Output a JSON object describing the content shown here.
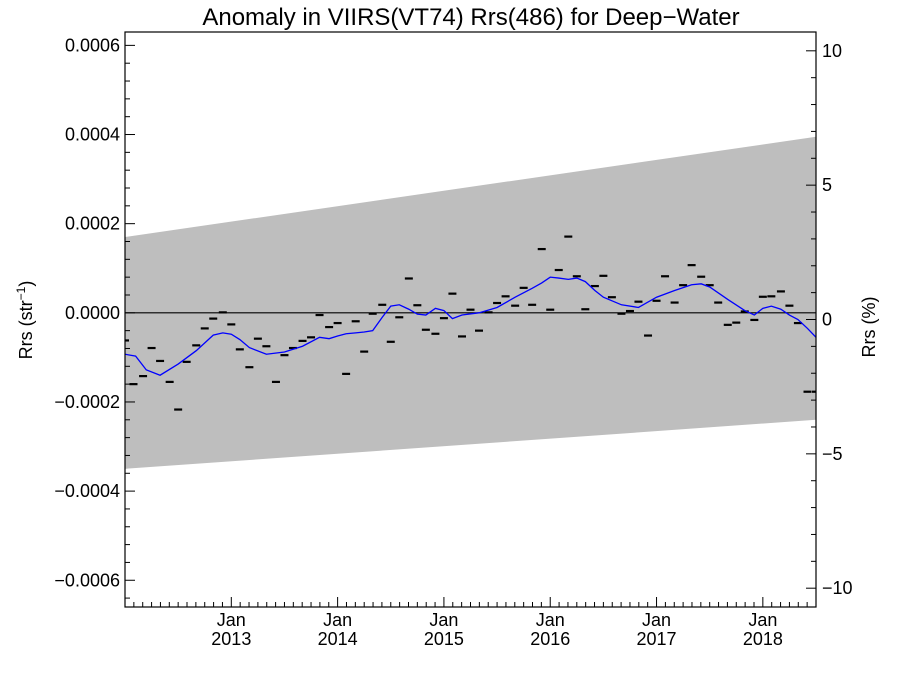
{
  "chart_data": {
    "type": "scatter",
    "title": "Anomaly in VIIRS(VT74) Rrs(486) for Deep−Water",
    "ylabel_left": "Rrs (str",
    "ylabel_left_sup": "−1",
    "ylabel_left_close": ")",
    "ylabel_right": "Rrs (%)",
    "x_tick_months": [
      "Jan",
      "Jan",
      "Jan",
      "Jan",
      "Jan",
      "Jan"
    ],
    "x_tick_years": [
      "2013",
      "2014",
      "2015",
      "2016",
      "2017",
      "2018"
    ],
    "x_ticks": [
      2013.0,
      2014.0,
      2015.0,
      2016.0,
      2017.0,
      2018.0
    ],
    "xlim": [
      2012.0,
      2018.5
    ],
    "ylim": [
      -0.00066,
      0.00063
    ],
    "y_ticks": [
      -0.0006,
      -0.0004,
      -0.0002,
      0.0,
      0.0002,
      0.0004,
      0.0006
    ],
    "y_tick_labels": [
      "−0.0006",
      "−0.0004",
      "−0.0002",
      "0.0000",
      "0.0002",
      "0.0004",
      "0.0006"
    ],
    "y2lim": [
      -10.7,
      10.7
    ],
    "y2_ticks": [
      -10,
      -5,
      0,
      5,
      10
    ],
    "y2_tick_labels": [
      "−10",
      "−5",
      "0",
      "5",
      "10"
    ],
    "reference_line": 0.0,
    "band": {
      "x": [
        2012.0,
        2018.5
      ],
      "upper": [
        0.00017,
        0.000395
      ],
      "lower": [
        -0.00035,
        -0.00024
      ],
      "color": "#bebebe"
    },
    "series": [
      {
        "style": "markers",
        "color": "#000000",
        "x": [
          2012.0,
          2012.08,
          2012.17,
          2012.25,
          2012.33,
          2012.42,
          2012.5,
          2012.58,
          2012.67,
          2012.75,
          2012.83,
          2012.92,
          2013.0,
          2013.08,
          2013.17,
          2013.25,
          2013.33,
          2013.42,
          2013.5,
          2013.58,
          2013.67,
          2013.75,
          2013.83,
          2013.92,
          2014.0,
          2014.08,
          2014.17,
          2014.25,
          2014.33,
          2014.42,
          2014.5,
          2014.58,
          2014.67,
          2014.75,
          2014.83,
          2014.92,
          2015.0,
          2015.08,
          2015.17,
          2015.25,
          2015.33,
          2015.42,
          2015.5,
          2015.58,
          2015.67,
          2015.75,
          2015.83,
          2015.92,
          2016.0,
          2016.08,
          2016.17,
          2016.25,
          2016.33,
          2016.42,
          2016.5,
          2016.58,
          2016.67,
          2016.75,
          2016.83,
          2016.92,
          2017.0,
          2017.08,
          2017.17,
          2017.25,
          2017.33,
          2017.42,
          2017.5,
          2017.58,
          2017.67,
          2017.75,
          2017.83,
          2017.92,
          2018.0,
          2018.08,
          2018.17,
          2018.25,
          2018.33,
          2018.42,
          2018.5
        ],
        "y": [
          -6.2e-05,
          -0.00016,
          -0.000142,
          -7.9e-05,
          -0.000108,
          -0.000155,
          -0.000217,
          -0.00011,
          -7.3e-05,
          -3.5e-05,
          -1.3e-05,
          1e-06,
          -2.6e-05,
          -8.2e-05,
          -0.000122,
          -5.8e-05,
          -7.5e-05,
          -0.000155,
          -9.5e-05,
          -7.9e-05,
          -6.3e-05,
          -5.5e-05,
          -5e-06,
          -3.2e-05,
          -2.3e-05,
          -0.000137,
          -1.9e-05,
          -8.7e-05,
          -2e-06,
          1.8e-05,
          -6.5e-05,
          -1e-05,
          7.7e-05,
          1.7e-05,
          -3.8e-05,
          -4.7e-05,
          -1.2e-05,
          4.3e-05,
          -5.3e-05,
          7e-06,
          -4e-05,
          1e-06,
          2.2e-05,
          3.7e-05,
          1.6e-05,
          5.6e-05,
          1.8e-05,
          0.000143,
          7e-06,
          9.6e-05,
          0.000171,
          8.2e-05,
          8e-06,
          6e-05,
          8.3e-05,
          3.5e-05,
          -2e-06,
          4e-06,
          2.5e-05,
          -5.1e-05,
          2.7e-05,
          8.2e-05,
          2.3e-05,
          6.2e-05,
          0.000107,
          8.1e-05,
          6.2e-05,
          2.3e-05,
          -2.7e-05,
          -2.2e-05,
          3e-06,
          -1.6e-05,
          3.6e-05,
          3.7e-05,
          4.8e-05,
          1.6e-05,
          -2.3e-05,
          -0.000177,
          -0.000177
        ]
      },
      {
        "style": "line",
        "color": "#0000ff",
        "x": [
          2012.0,
          2012.1,
          2012.2,
          2012.33,
          2012.5,
          2012.67,
          2012.83,
          2012.92,
          2013.0,
          2013.08,
          2013.17,
          2013.33,
          2013.5,
          2013.67,
          2013.83,
          2013.92,
          2014.0,
          2014.08,
          2014.17,
          2014.25,
          2014.33,
          2014.42,
          2014.5,
          2014.58,
          2014.67,
          2014.75,
          2014.83,
          2014.92,
          2015.0,
          2015.08,
          2015.17,
          2015.33,
          2015.5,
          2015.67,
          2015.83,
          2015.92,
          2016.0,
          2016.08,
          2016.17,
          2016.25,
          2016.33,
          2016.42,
          2016.5,
          2016.67,
          2016.83,
          2017.0,
          2017.17,
          2017.33,
          2017.42,
          2017.5,
          2017.67,
          2017.83,
          2017.92,
          2018.0,
          2018.08,
          2018.17,
          2018.25,
          2018.33,
          2018.42,
          2018.5
        ],
        "y": [
          -9.3e-05,
          -9.7e-05,
          -0.000128,
          -0.00014,
          -0.000115,
          -8.5e-05,
          -5e-05,
          -4.5e-05,
          -4.8e-05,
          -6e-05,
          -7.8e-05,
          -9.3e-05,
          -8.8e-05,
          -7.5e-05,
          -5.5e-05,
          -5.8e-05,
          -5.2e-05,
          -4.7e-05,
          -4.5e-05,
          -4.3e-05,
          -4e-05,
          -1e-05,
          1.5e-05,
          1.8e-05,
          8e-06,
          -3e-06,
          -5e-06,
          1e-05,
          5e-06,
          -1.3e-05,
          -5e-06,
          0.0,
          1.2e-05,
          3.5e-05,
          5.5e-05,
          6.7e-05,
          8e-05,
          7.8e-05,
          7.5e-05,
          7.8e-05,
          7e-05,
          5e-05,
          3.5e-05,
          1.8e-05,
          1.2e-05,
          3.5e-05,
          5e-05,
          6.3e-05,
          6.5e-05,
          5.8e-05,
          3e-05,
          5e-06,
          -5e-06,
          1e-05,
          1.5e-05,
          8e-06,
          -5e-06,
          -1.5e-05,
          -3.5e-05,
          -5.5e-05
        ]
      }
    ]
  }
}
